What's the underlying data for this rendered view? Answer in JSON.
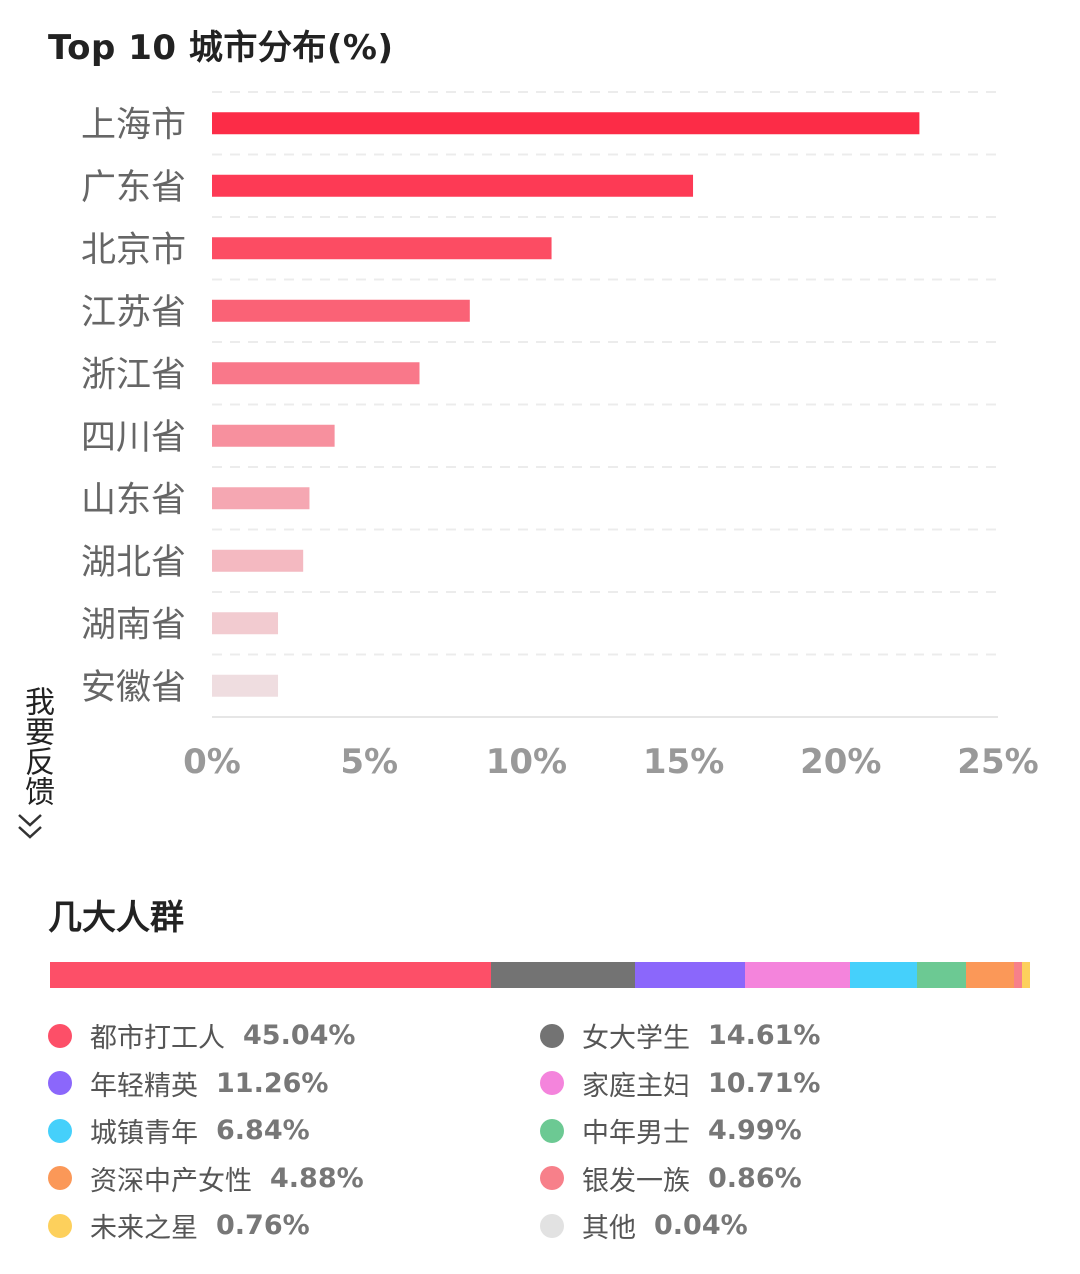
{
  "chart_data": [
    {
      "type": "bar",
      "orientation": "horizontal",
      "title": "Top 10 城市分布(%)",
      "categories": [
        "上海市",
        "广东省",
        "北京市",
        "江苏省",
        "浙江省",
        "四川省",
        "山东省",
        "湖北省",
        "湖南省",
        "安徽省"
      ],
      "values": [
        22.5,
        15.3,
        10.8,
        8.2,
        6.6,
        3.9,
        3.1,
        2.9,
        2.1,
        2.1
      ],
      "xlim": [
        0,
        25
      ],
      "xticks": [
        "0%",
        "5%",
        "10%",
        "15%",
        "20%",
        "25%"
      ],
      "grid": true,
      "colors": [
        "#fc2c47",
        "#fd3a55",
        "#fc4c63",
        "#fa6276",
        "#f9788a",
        "#f7909e",
        "#f5a7b2",
        "#f4b9c1",
        "#f2cbd0",
        "#efdde0"
      ]
    },
    {
      "type": "bar",
      "orientation": "stacked-horizontal",
      "title": "几大人群",
      "series": [
        {
          "name": "都市打工人",
          "value": 45.04,
          "label": "45.04%",
          "color": "#fd4f68"
        },
        {
          "name": "女大学生",
          "value": 14.61,
          "label": "14.61%",
          "color": "#737373"
        },
        {
          "name": "年轻精英",
          "value": 11.26,
          "label": "11.26%",
          "color": "#8b67fb"
        },
        {
          "name": "家庭主妇",
          "value": 10.71,
          "label": "10.71%",
          "color": "#f484dc"
        },
        {
          "name": "城镇青年",
          "value": 6.84,
          "label": "6.84%",
          "color": "#45d0fb"
        },
        {
          "name": "中年男士",
          "value": 4.99,
          "label": "4.99%",
          "color": "#6cc993"
        },
        {
          "name": "资深中产女性",
          "value": 4.88,
          "label": "4.88%",
          "color": "#fb9858"
        },
        {
          "name": "银发一族",
          "value": 0.86,
          "label": "0.86%",
          "color": "#f7808a"
        },
        {
          "name": "未来之星",
          "value": 0.76,
          "label": "0.76%",
          "color": "#fdd05c"
        },
        {
          "name": "其他",
          "value": 0.04,
          "label": "0.04%",
          "color": "#e2e2e2"
        }
      ],
      "legend": "bottom"
    }
  ],
  "feedback": {
    "label": "我要反馈"
  }
}
